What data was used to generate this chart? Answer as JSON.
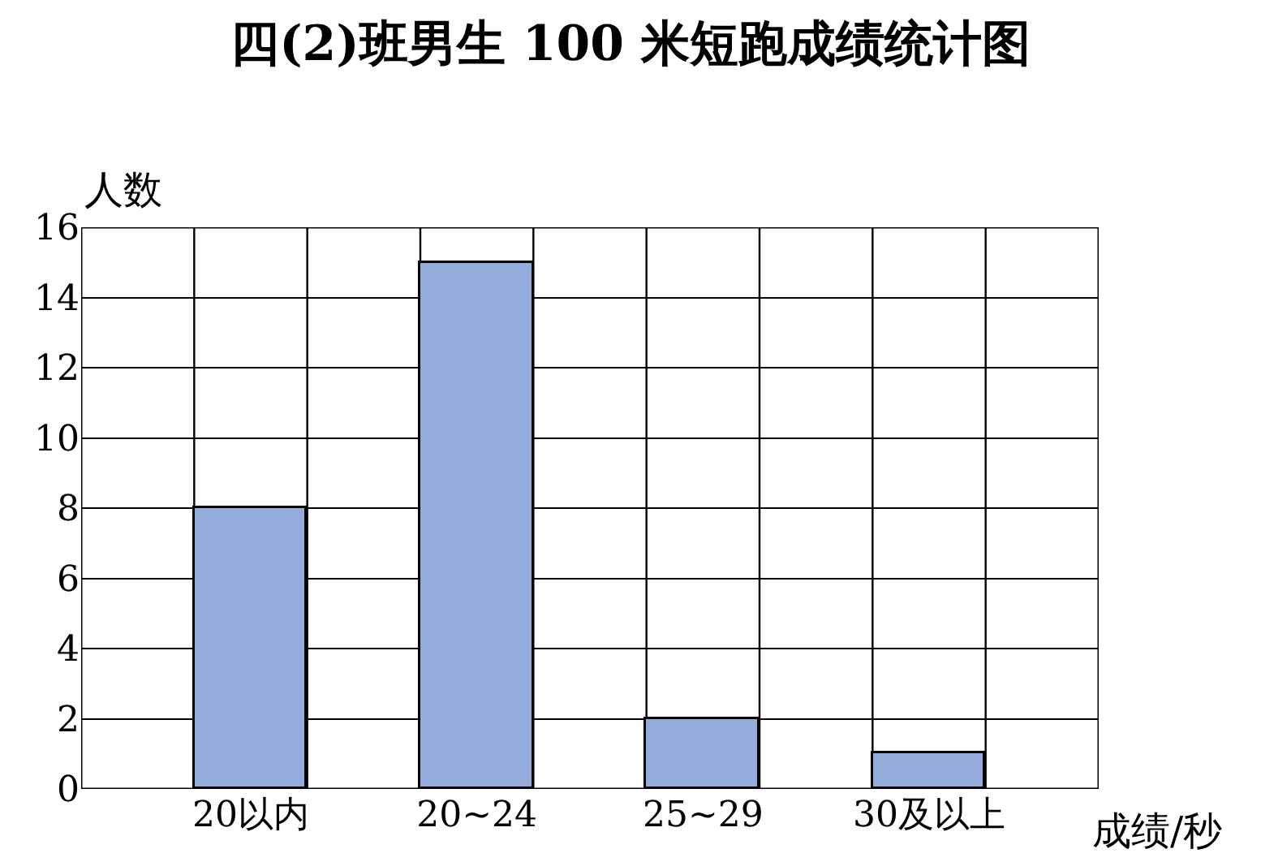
{
  "chart_data": {
    "type": "bar",
    "title": "四(2)班男生 100 米短跑成绩统计图",
    "xlabel": "成绩/秒",
    "ylabel": "人数",
    "categories": [
      "20以内",
      "20~24",
      "25~29",
      "30及以上"
    ],
    "values": [
      8,
      15,
      2,
      1
    ],
    "color": "#94acdc",
    "ylim": [
      0,
      16
    ],
    "yticks": [
      0,
      2,
      4,
      6,
      8,
      10,
      12,
      14,
      16
    ],
    "grid": true,
    "legend": false
  }
}
